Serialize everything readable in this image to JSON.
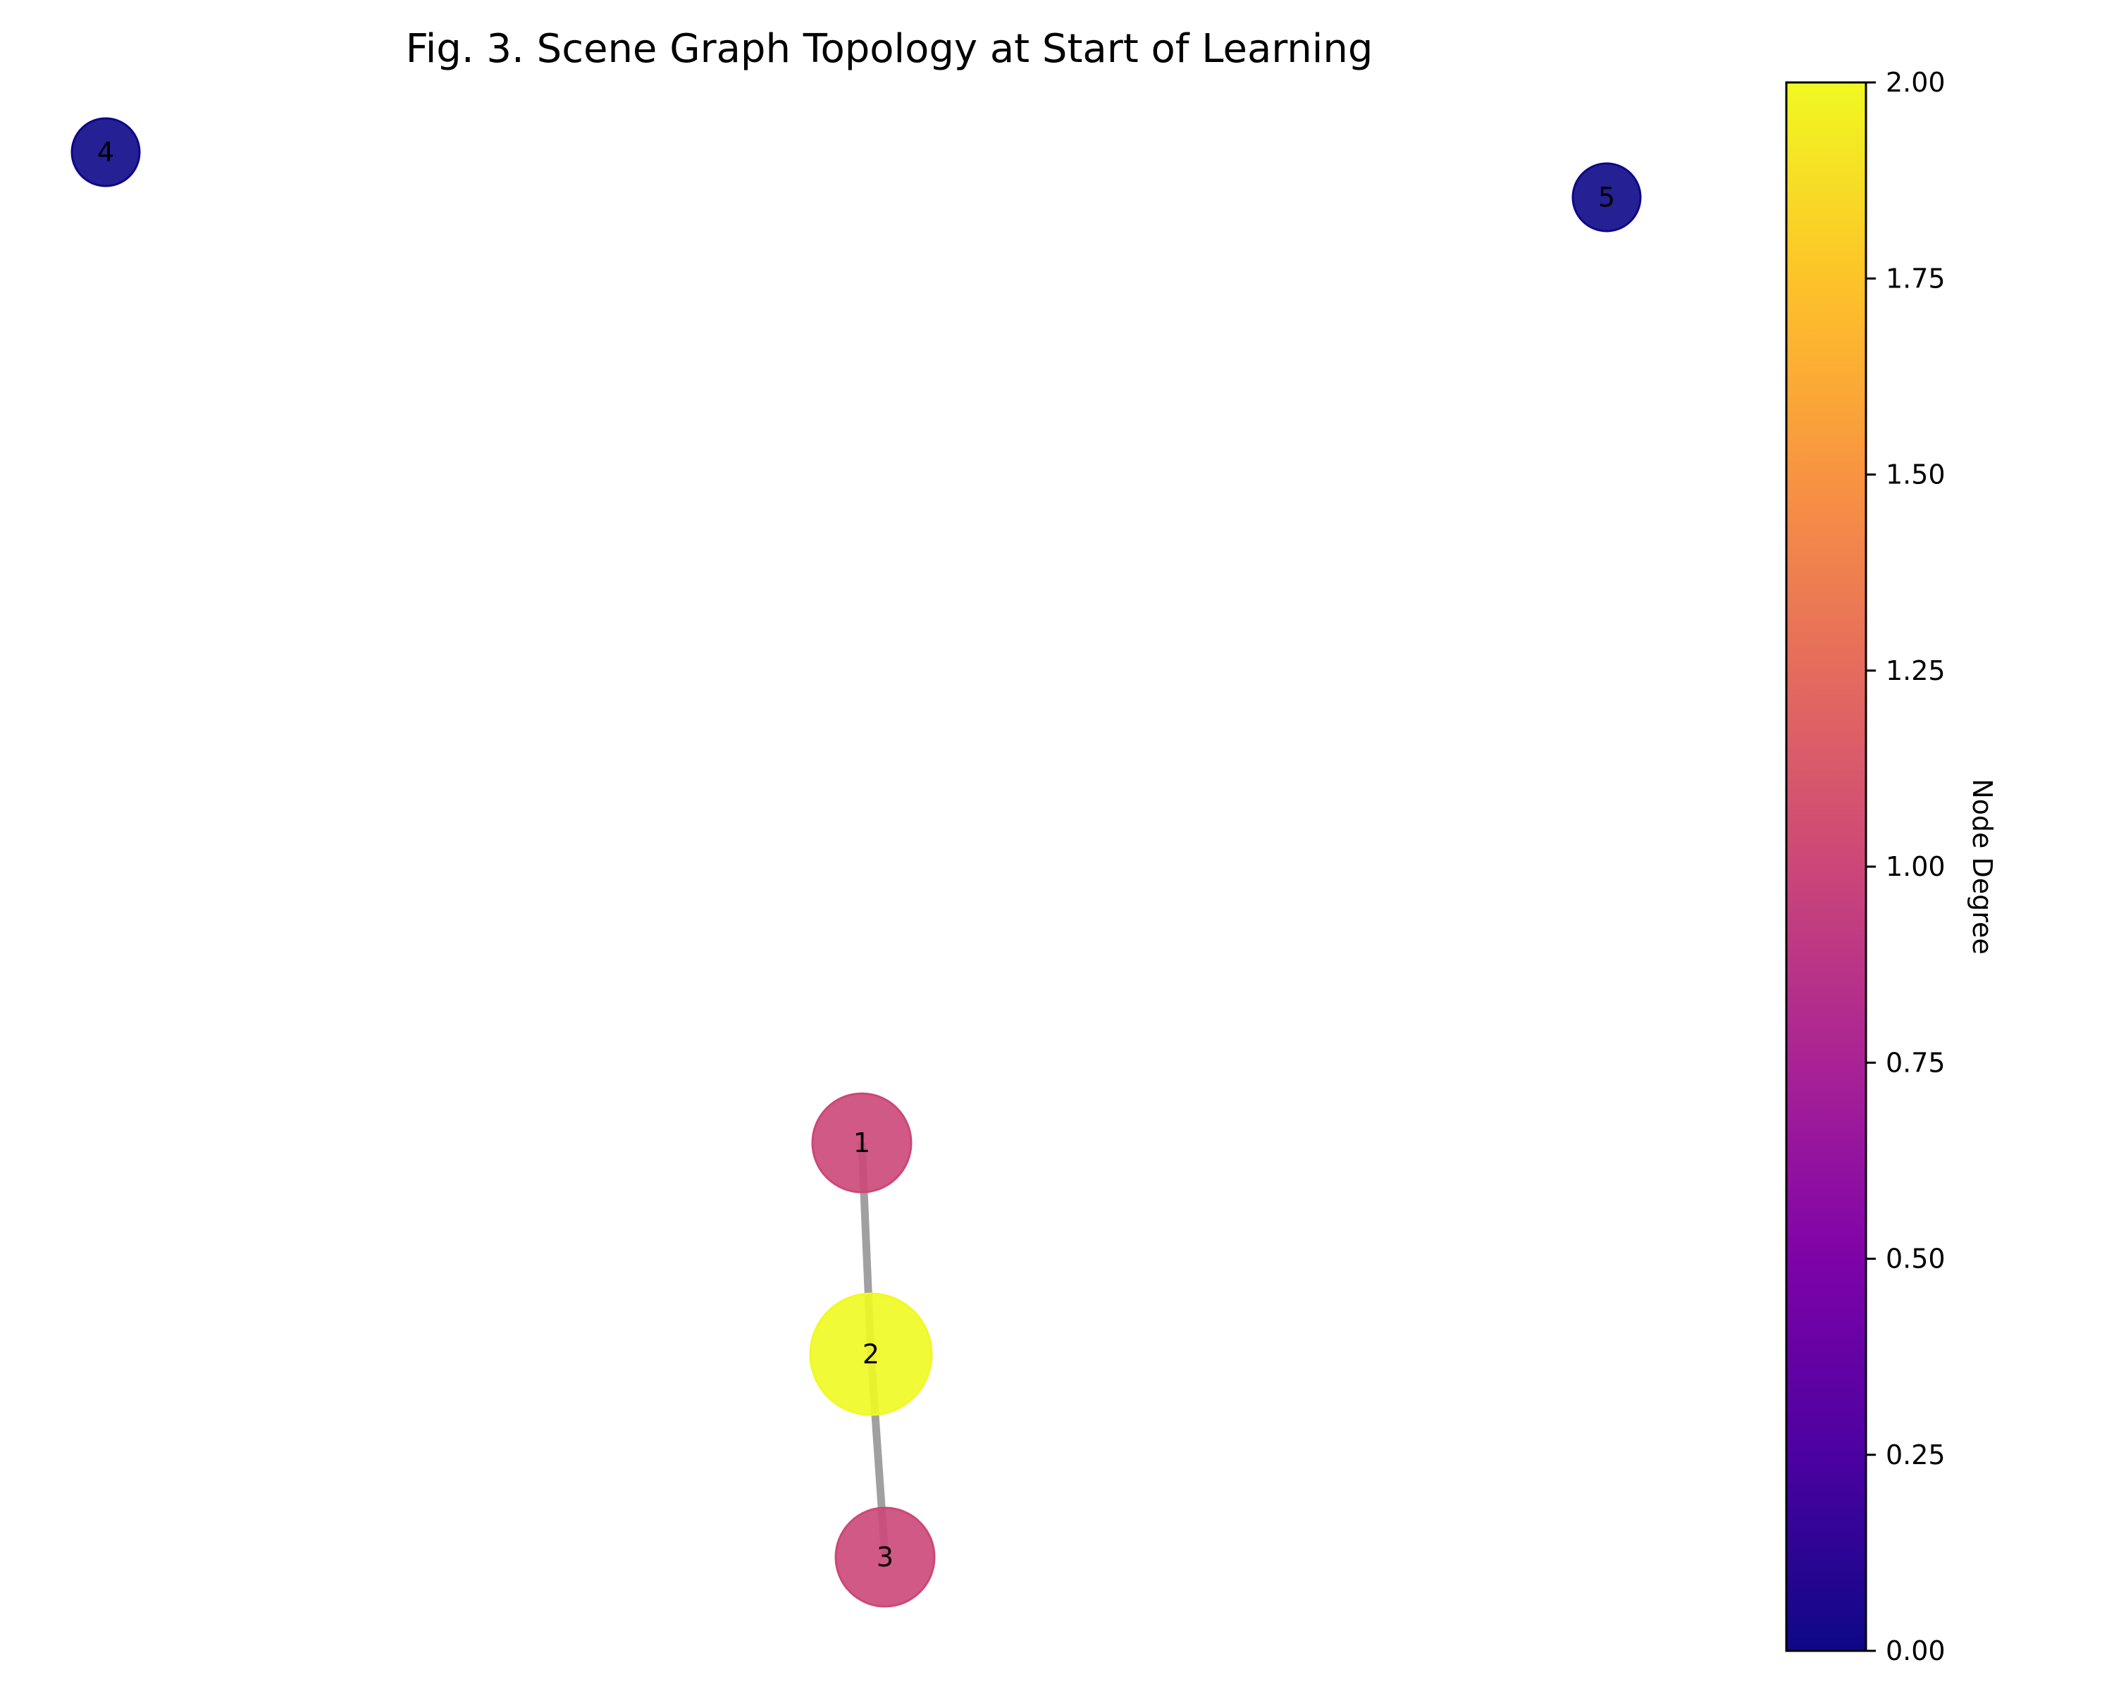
{
  "figure": {
    "title": "Fig. 3. Scene Graph Topology at Start of Learning"
  },
  "colorbar": {
    "label": "Node Degree",
    "min": 0,
    "max": 2,
    "colormap": "plasma",
    "ticks": [
      "0.00",
      "0.25",
      "0.50",
      "0.75",
      "1.00",
      "1.25",
      "1.50",
      "1.75",
      "2.00"
    ]
  },
  "graph": {
    "nodes": [
      {
        "id": "1",
        "degree": 1,
        "color": "#cc4778"
      },
      {
        "id": "2",
        "degree": 2,
        "color": "#f0f921"
      },
      {
        "id": "3",
        "degree": 1,
        "color": "#cc4778"
      },
      {
        "id": "4",
        "degree": 0,
        "color": "#0d0887"
      },
      {
        "id": "5",
        "degree": 0,
        "color": "#0d0887"
      }
    ],
    "edges": [
      {
        "source": "1",
        "target": "2"
      },
      {
        "source": "2",
        "target": "3"
      }
    ],
    "edge_color": "#a0a0a0"
  }
}
